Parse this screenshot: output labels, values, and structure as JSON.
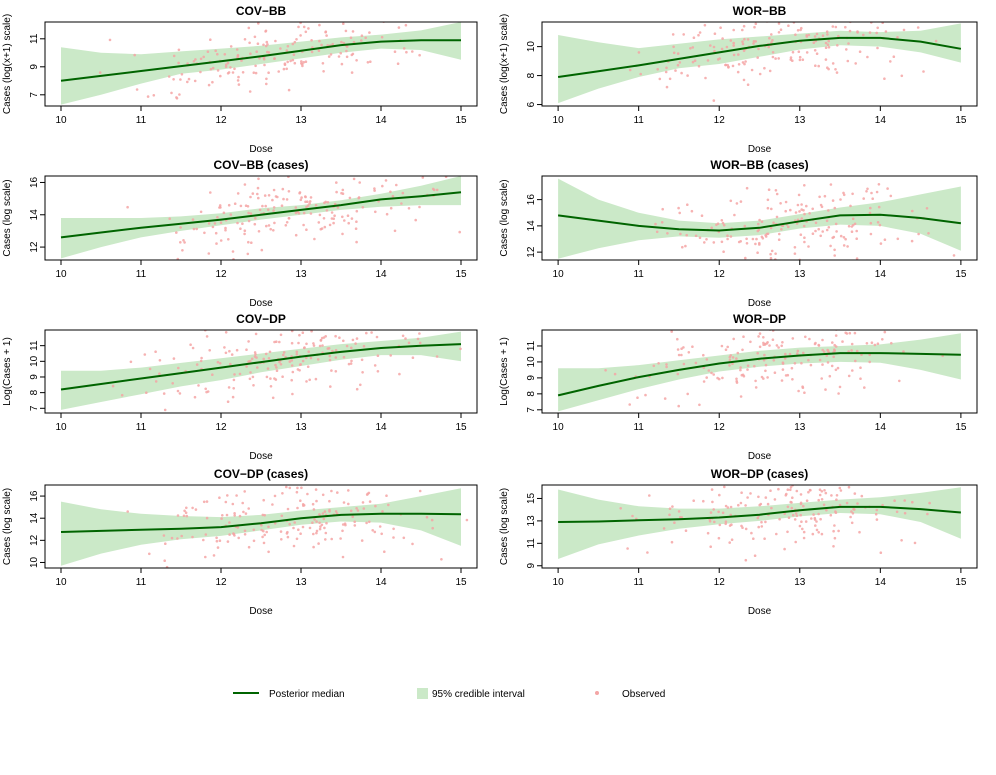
{
  "colors": {
    "band": "#cbe9c8",
    "line": "#006400",
    "points": "#f4a5a5",
    "axis": "#000000"
  },
  "legend": {
    "placement": "bottom-center",
    "items": [
      {
        "label": "Posterior median",
        "kind": "line"
      },
      {
        "label": "95% credible interval",
        "kind": "band"
      },
      {
        "label": "Observed",
        "kind": "point"
      }
    ]
  },
  "chart_data": [
    {
      "type": "line",
      "title": "COV−BB",
      "xlabel": "Dose",
      "ylabel": "Cases (log(x+1) scale)",
      "xlim": [
        9.8,
        15.2
      ],
      "ylim": [
        6.2,
        12.2
      ],
      "xticks": [
        10,
        11,
        12,
        13,
        14,
        15
      ],
      "yticks": [
        7,
        9,
        11
      ],
      "x": [
        10,
        10.5,
        11,
        11.5,
        12,
        12.5,
        13,
        13.5,
        14,
        14.5,
        15
      ],
      "median": [
        8.0,
        8.35,
        8.7,
        9.05,
        9.4,
        9.75,
        10.15,
        10.55,
        10.8,
        10.9,
        10.9
      ],
      "lower": [
        6.3,
        7.0,
        7.8,
        8.5,
        8.8,
        9.2,
        9.6,
        10.0,
        10.3,
        10.2,
        9.5
      ],
      "upper": [
        10.4,
        10.0,
        9.9,
        10.1,
        10.3,
        10.5,
        10.8,
        11.1,
        11.3,
        11.6,
        12.2
      ],
      "points": {
        "n": 190,
        "seed": 11,
        "xmode": 12.7,
        "spread": 2.2
      }
    },
    {
      "type": "line",
      "title": "WOR−BB",
      "xlabel": "Dose",
      "ylabel": "Cases (log(x+1) scale)",
      "xlim": [
        9.8,
        15.2
      ],
      "ylim": [
        5.9,
        11.7
      ],
      "xticks": [
        10,
        11,
        12,
        13,
        14,
        15
      ],
      "yticks": [
        6,
        8,
        10
      ],
      "x": [
        10,
        10.5,
        11,
        11.5,
        12,
        12.5,
        13,
        13.5,
        14,
        14.5,
        15
      ],
      "median": [
        7.9,
        8.3,
        8.7,
        9.15,
        9.6,
        10.05,
        10.4,
        10.6,
        10.6,
        10.35,
        9.85
      ],
      "lower": [
        6.1,
        7.1,
        7.9,
        8.5,
        8.8,
        9.3,
        9.8,
        10.1,
        10.0,
        9.6,
        8.9
      ],
      "upper": [
        10.8,
        10.3,
        9.9,
        10.2,
        10.5,
        10.7,
        10.9,
        11.1,
        11.0,
        11.1,
        11.6
      ],
      "points": {
        "n": 190,
        "seed": 23,
        "xmode": 12.7,
        "spread": 2.2
      }
    },
    {
      "type": "line",
      "title": "COV−BB (cases)",
      "xlabel": "Dose",
      "ylabel": "Cases (log scale)",
      "xlim": [
        9.8,
        15.2
      ],
      "ylim": [
        11.2,
        16.4
      ],
      "xticks": [
        10,
        11,
        12,
        13,
        14,
        15
      ],
      "yticks": [
        12,
        14,
        16
      ],
      "x": [
        10,
        10.5,
        11,
        11.5,
        12,
        12.5,
        13,
        13.5,
        14,
        14.5,
        15
      ],
      "median": [
        12.6,
        12.9,
        13.2,
        13.45,
        13.7,
        14.0,
        14.3,
        14.6,
        14.95,
        15.15,
        15.4
      ],
      "lower": [
        11.3,
        12.0,
        12.6,
        13.0,
        13.35,
        13.7,
        14.0,
        14.3,
        14.5,
        14.6,
        14.6
      ],
      "upper": [
        13.8,
        13.8,
        13.8,
        13.9,
        14.1,
        14.4,
        14.6,
        14.9,
        15.3,
        15.8,
        16.4
      ],
      "points": {
        "n": 190,
        "seed": 37,
        "xmode": 12.9,
        "spread": 2.2
      }
    },
    {
      "type": "line",
      "title": "WOR−BB (cases)",
      "xlabel": "Dose",
      "ylabel": "Cases (log scale)",
      "xlim": [
        9.8,
        15.2
      ],
      "ylim": [
        11.4,
        17.8
      ],
      "xticks": [
        10,
        11,
        12,
        13,
        14,
        15
      ],
      "yticks": [
        12,
        14,
        16
      ],
      "x": [
        10,
        10.5,
        11,
        11.5,
        12,
        12.5,
        13,
        13.5,
        14,
        14.5,
        15
      ],
      "median": [
        14.8,
        14.4,
        14.0,
        13.75,
        13.65,
        13.85,
        14.35,
        14.8,
        14.85,
        14.6,
        14.2
      ],
      "lower": [
        11.5,
        12.3,
        12.9,
        13.2,
        13.1,
        13.3,
        13.8,
        14.1,
        14.0,
        13.4,
        12.1
      ],
      "upper": [
        17.6,
        16.0,
        15.0,
        14.4,
        14.2,
        14.4,
        14.9,
        15.4,
        15.8,
        16.4,
        17.0
      ],
      "points": {
        "n": 190,
        "seed": 53,
        "xmode": 12.9,
        "spread": 2.2
      }
    },
    {
      "type": "line",
      "title": "COV−DP",
      "xlabel": "Dose",
      "ylabel": "Log(Cases + 1)",
      "xlim": [
        9.8,
        15.2
      ],
      "ylim": [
        6.7,
        12.0
      ],
      "xticks": [
        10,
        11,
        12,
        13,
        14,
        15
      ],
      "yticks": [
        7,
        8,
        9,
        10,
        11
      ],
      "x": [
        10,
        10.5,
        11,
        11.5,
        12,
        12.5,
        13,
        13.5,
        14,
        14.5,
        15
      ],
      "median": [
        8.2,
        8.55,
        8.9,
        9.25,
        9.6,
        9.95,
        10.3,
        10.6,
        10.85,
        11.0,
        11.1
      ],
      "lower": [
        6.9,
        7.4,
        7.9,
        8.4,
        8.8,
        9.3,
        9.7,
        10.1,
        10.4,
        10.4,
        10.0
      ],
      "upper": [
        9.4,
        9.4,
        9.6,
        9.9,
        10.2,
        10.5,
        10.8,
        11.1,
        11.3,
        11.5,
        11.9
      ],
      "points": {
        "n": 190,
        "seed": 71,
        "xmode": 12.7,
        "spread": 2.2
      }
    },
    {
      "type": "line",
      "title": "WOR−DP",
      "xlabel": "Dose",
      "ylabel": "Log(Cases + 1)",
      "xlim": [
        9.8,
        15.2
      ],
      "ylim": [
        6.8,
        12.0
      ],
      "xticks": [
        10,
        11,
        12,
        13,
        14,
        15
      ],
      "yticks": [
        7,
        8,
        9,
        10,
        11
      ],
      "x": [
        10,
        10.5,
        11,
        11.5,
        12,
        12.5,
        13,
        13.5,
        14,
        14.5,
        15
      ],
      "median": [
        7.9,
        8.5,
        9.05,
        9.5,
        9.9,
        10.2,
        10.4,
        10.55,
        10.55,
        10.5,
        10.45
      ],
      "lower": [
        6.9,
        7.6,
        8.3,
        8.9,
        9.4,
        9.7,
        9.9,
        10.0,
        9.95,
        9.5,
        8.9
      ],
      "upper": [
        9.6,
        9.6,
        9.8,
        10.1,
        10.4,
        10.7,
        10.9,
        11.0,
        11.1,
        11.4,
        11.8
      ],
      "points": {
        "n": 190,
        "seed": 89,
        "xmode": 12.7,
        "spread": 2.2
      }
    },
    {
      "type": "line",
      "title": "COV−DP (cases)",
      "xlabel": "Dose",
      "ylabel": "Cases (log scale)",
      "xlim": [
        9.8,
        15.2
      ],
      "ylim": [
        9.5,
        17.0
      ],
      "xticks": [
        10,
        11,
        12,
        13,
        14,
        15
      ],
      "yticks": [
        10,
        12,
        14,
        16
      ],
      "x": [
        10,
        10.5,
        11,
        11.5,
        12,
        12.5,
        13,
        13.5,
        14,
        14.5,
        15
      ],
      "median": [
        12.75,
        12.85,
        12.95,
        13.05,
        13.2,
        13.55,
        14.0,
        14.3,
        14.4,
        14.4,
        14.35
      ],
      "lower": [
        9.7,
        10.8,
        11.6,
        12.1,
        12.4,
        12.9,
        13.4,
        13.7,
        13.6,
        12.9,
        11.5
      ],
      "upper": [
        15.5,
        14.8,
        14.4,
        14.2,
        14.1,
        14.3,
        14.7,
        15.0,
        15.3,
        16.0,
        16.7
      ],
      "points": {
        "n": 190,
        "seed": 97,
        "xmode": 12.8,
        "spread": 2.2
      }
    },
    {
      "type": "line",
      "title": "WOR−DP (cases)",
      "xlabel": "Dose",
      "ylabel": "Cases (log scale)",
      "xlim": [
        9.8,
        15.2
      ],
      "ylim": [
        8.8,
        16.2
      ],
      "xticks": [
        10,
        11,
        12,
        13,
        14,
        15
      ],
      "yticks": [
        9,
        11,
        13,
        15
      ],
      "x": [
        10,
        10.5,
        11,
        11.5,
        12,
        12.5,
        13,
        13.5,
        14,
        14.5,
        15
      ],
      "median": [
        12.9,
        12.95,
        13.05,
        13.15,
        13.3,
        13.55,
        13.95,
        14.25,
        14.25,
        14.05,
        13.75
      ],
      "lower": [
        9.6,
        10.9,
        11.7,
        12.3,
        12.7,
        13.0,
        13.4,
        13.7,
        13.6,
        12.9,
        11.4
      ],
      "upper": [
        15.8,
        14.9,
        14.3,
        14.1,
        14.1,
        14.3,
        14.6,
        14.9,
        15.1,
        15.5,
        16.0
      ],
      "points": {
        "n": 190,
        "seed": 113,
        "xmode": 12.8,
        "spread": 2.2
      }
    }
  ]
}
